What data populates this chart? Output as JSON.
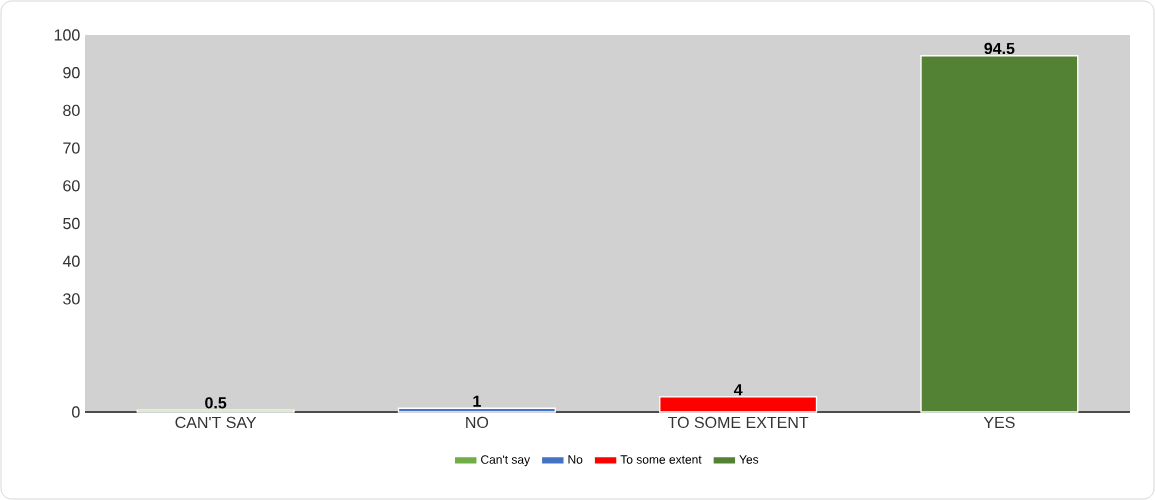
{
  "chart_data": {
    "type": "bar",
    "categories": [
      "CAN'T SAY",
      "NO",
      "TO SOME EXTENT",
      "YES"
    ],
    "series": [
      {
        "name": "Can't say",
        "color": "#70ad47",
        "values": [
          0.5,
          null,
          null,
          null
        ]
      },
      {
        "name": "No",
        "color": "#4472c4",
        "values": [
          null,
          1,
          null,
          null
        ]
      },
      {
        "name": "To some extent",
        "color": "#ff0000",
        "values": [
          null,
          null,
          4,
          null
        ]
      },
      {
        "name": "Yes",
        "color": "#548235",
        "values": [
          null,
          null,
          null,
          94.5
        ]
      }
    ],
    "ylim": [
      0,
      100
    ],
    "yticks": [
      0,
      30,
      40,
      50,
      60,
      70,
      80,
      90,
      100
    ],
    "data_labels": true,
    "legend": "bottom",
    "grid": false
  }
}
